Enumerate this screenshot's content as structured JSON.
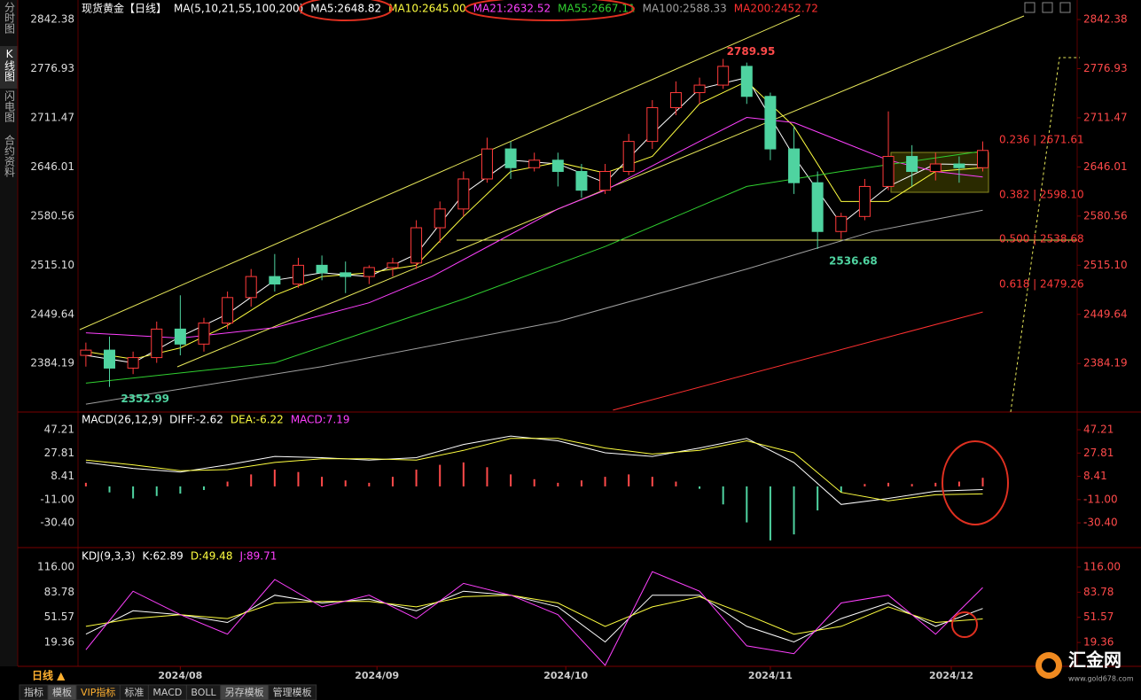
{
  "sidebar_tabs": [
    "分时图",
    "K线图",
    "闪电图",
    "合约资料"
  ],
  "chart_data": [
    {
      "type": "candlestick",
      "title": "现货黄金【日线】",
      "indicator": "MA(5,10,21,55,100,200)",
      "up_color": "#ff3a3a",
      "down_color": "#4fd3a0",
      "x": [
        0,
        3,
        6,
        9,
        12,
        15,
        18,
        21,
        24,
        27,
        30,
        33,
        36,
        39,
        42,
        45,
        48,
        51,
        54,
        57,
        60,
        63,
        66,
        69,
        72,
        75,
        78,
        81,
        84,
        87,
        90,
        93,
        96,
        99,
        102,
        105,
        108,
        111,
        114
      ],
      "open": [
        2395,
        2402,
        2378,
        2392,
        2430,
        2410,
        2438,
        2472,
        2500,
        2490,
        2515,
        2505,
        2500,
        2512,
        2518,
        2565,
        2590,
        2630,
        2670,
        2645,
        2655,
        2640,
        2615,
        2640,
        2680,
        2725,
        2745,
        2755,
        2780,
        2740,
        2670,
        2625,
        2560,
        2580,
        2620,
        2660,
        2640,
        2650,
        2645
      ],
      "high": [
        2412,
        2420,
        2400,
        2440,
        2475,
        2445,
        2480,
        2510,
        2530,
        2525,
        2528,
        2520,
        2515,
        2525,
        2575,
        2600,
        2640,
        2685,
        2680,
        2665,
        2665,
        2650,
        2650,
        2690,
        2735,
        2760,
        2765,
        2789.95,
        2785,
        2745,
        2700,
        2640,
        2585,
        2630,
        2720,
        2675,
        2665,
        2660,
        2680
      ],
      "low": [
        2380,
        2352.99,
        2370,
        2385,
        2395,
        2400,
        2430,
        2460,
        2480,
        2485,
        2495,
        2478,
        2490,
        2500,
        2510,
        2545,
        2580,
        2625,
        2630,
        2640,
        2620,
        2605,
        2610,
        2635,
        2670,
        2715,
        2730,
        2750,
        2730,
        2655,
        2610,
        2536.68,
        2550,
        2575,
        2615,
        2620,
        2628,
        2625,
        2640
      ],
      "close": [
        2402,
        2378,
        2392,
        2430,
        2410,
        2438,
        2472,
        2500,
        2490,
        2515,
        2505,
        2500,
        2512,
        2518,
        2565,
        2590,
        2630,
        2670,
        2645,
        2655,
        2640,
        2615,
        2640,
        2680,
        2725,
        2745,
        2755,
        2780,
        2740,
        2670,
        2625,
        2560,
        2580,
        2620,
        2660,
        2640,
        2650,
        2645,
        2668
      ],
      "series": [
        {
          "name": "MA5:2648.82",
          "color": "#ffffff",
          "x": [
            0,
            6,
            12,
            18,
            24,
            30,
            36,
            42,
            48,
            54,
            60,
            66,
            72,
            78,
            84,
            90,
            96,
            102,
            108,
            114
          ],
          "values": [
            2395,
            2385,
            2420,
            2450,
            2495,
            2505,
            2500,
            2530,
            2610,
            2655,
            2650,
            2625,
            2690,
            2750,
            2765,
            2660,
            2570,
            2620,
            2650,
            2648.82
          ]
        },
        {
          "name": "MA10:2645.00",
          "color": "#ffff40",
          "x": [
            0,
            6,
            12,
            18,
            24,
            30,
            36,
            42,
            48,
            54,
            60,
            66,
            72,
            78,
            84,
            90,
            96,
            102,
            108,
            114
          ],
          "values": [
            2400,
            2390,
            2405,
            2435,
            2475,
            2500,
            2505,
            2515,
            2580,
            2640,
            2652,
            2638,
            2660,
            2730,
            2760,
            2700,
            2600,
            2600,
            2640,
            2645.0
          ]
        },
        {
          "name": "MA21:2632.52",
          "color": "#ff40ff",
          "x": [
            0,
            12,
            24,
            36,
            44,
            52,
            60,
            66,
            78,
            84,
            90,
            96,
            102,
            108,
            114
          ],
          "values": [
            2425,
            2418,
            2432,
            2465,
            2500,
            2545,
            2590,
            2615,
            2680,
            2712,
            2705,
            2680,
            2655,
            2640,
            2632.52
          ]
        },
        {
          "name": "MA55:2667.11",
          "color": "#30d030",
          "x": [
            0,
            24,
            48,
            66,
            84,
            96,
            114
          ],
          "values": [
            2358,
            2385,
            2470,
            2540,
            2620,
            2640,
            2667.11
          ]
        },
        {
          "name": "MA100:2588.33",
          "color": "#a0a0a0",
          "x": [
            0,
            30,
            60,
            84,
            100,
            114
          ],
          "values": [
            2330,
            2380,
            2440,
            2510,
            2560,
            2588.33
          ]
        },
        {
          "name": "MA200:2452.72",
          "color": "#ff3030",
          "x": [
            67,
            114
          ],
          "values": [
            2322,
            2452.72
          ]
        }
      ],
      "xlim": [
        -1,
        126
      ],
      "ylim": [
        2319.5,
        2868.4
      ],
      "yticks": [
        2842.38,
        2776.93,
        2711.47,
        2646.01,
        2580.56,
        {
          "value": 2515.1,
          "label": "2515.10"
        },
        2449.64,
        2384.19
      ],
      "xticks": [
        {
          "value": 12,
          "label": "2024/08"
        },
        {
          "value": 37,
          "label": "2024/09"
        },
        {
          "value": 61,
          "label": "2024/10"
        },
        {
          "value": 87,
          "label": "2024/11"
        },
        {
          "value": 110,
          "label": "2024/12"
        }
      ],
      "annotations": [
        {
          "text": "2789.95",
          "x": 81,
          "y": 2789.95,
          "color": "#ff4a4a"
        },
        {
          "text": "2536.68",
          "x": 94,
          "y": 2536.68,
          "color": "#4fd3a0"
        },
        {
          "text": "2352.99",
          "x": 4,
          "y": 2352.99,
          "color": "#4fd3a0"
        }
      ],
      "fib_labels": [
        "0.236 | 2671.61",
        "0.382 | 2598.10",
        "0.500 | 2538.68",
        "0.618 | 2479.26"
      ]
    },
    {
      "type": "macd",
      "title": "MACD(26,12,9)",
      "value_name": "MACD:7.19",
      "label_color": "#ff40ff",
      "up_color": "#ff4a4a",
      "down_color": "#4fd3a0",
      "x": [
        0,
        3,
        6,
        9,
        12,
        15,
        18,
        21,
        24,
        27,
        30,
        33,
        36,
        39,
        42,
        45,
        48,
        51,
        54,
        57,
        60,
        63,
        66,
        69,
        72,
        75,
        78,
        81,
        84,
        87,
        90,
        93,
        96,
        99,
        102,
        105,
        108,
        111,
        114
      ],
      "values": [
        3,
        -5,
        -10,
        -8,
        -6,
        -3,
        4,
        10,
        14,
        12,
        8,
        5,
        3,
        8,
        14,
        18,
        20,
        16,
        10,
        6,
        3,
        5,
        8,
        10,
        8,
        4,
        -2,
        -15,
        -30,
        -45,
        -40,
        -20,
        -5,
        2,
        3,
        2,
        3,
        4,
        7.19
      ],
      "series": [
        {
          "name": "DIFF:-2.62",
          "color": "#ffffff",
          "x": [
            0,
            6,
            12,
            18,
            24,
            30,
            36,
            42,
            48,
            54,
            60,
            66,
            72,
            78,
            84,
            90,
            96,
            102,
            108,
            114
          ],
          "values": [
            20,
            15,
            12,
            18,
            25,
            24,
            22,
            24,
            35,
            42,
            38,
            28,
            25,
            32,
            40,
            20,
            -15,
            -10,
            -4,
            -2.62
          ]
        },
        {
          "name": "DEA:-6.22",
          "color": "#ffff40",
          "x": [
            0,
            6,
            12,
            18,
            24,
            30,
            36,
            42,
            48,
            54,
            60,
            66,
            72,
            78,
            84,
            90,
            96,
            102,
            108,
            114
          ],
          "values": [
            22,
            18,
            13,
            14,
            20,
            23,
            23,
            22,
            30,
            40,
            40,
            32,
            27,
            30,
            38,
            28,
            -5,
            -12,
            -7,
            -6.22
          ]
        }
      ],
      "xlim": [
        -1,
        126
      ],
      "ylim": [
        -51,
        62
      ],
      "yticks": [
        47.21,
        27.81,
        8.41,
        {
          "value": -11,
          "label": "-11.00"
        },
        {
          "value": -30.4,
          "label": "-30.40"
        }
      ]
    },
    {
      "type": "line",
      "title": "KDJ(9,3,3)",
      "series": [
        {
          "name": "K:62.89",
          "color": "#ffffff",
          "x": [
            0,
            6,
            12,
            18,
            24,
            30,
            36,
            42,
            48,
            54,
            60,
            66,
            72,
            78,
            84,
            90,
            96,
            102,
            108,
            114
          ],
          "values": [
            30,
            60,
            55,
            45,
            80,
            70,
            75,
            60,
            85,
            80,
            65,
            20,
            80,
            80,
            40,
            20,
            50,
            70,
            40,
            62.89
          ]
        },
        {
          "name": "D:49.48",
          "color": "#ffff40",
          "x": [
            0,
            6,
            12,
            18,
            24,
            30,
            36,
            42,
            48,
            54,
            60,
            66,
            72,
            78,
            84,
            90,
            96,
            102,
            108,
            114
          ],
          "values": [
            40,
            50,
            55,
            50,
            70,
            72,
            72,
            65,
            78,
            80,
            70,
            40,
            65,
            78,
            55,
            30,
            40,
            65,
            45,
            49.48
          ]
        },
        {
          "name": "J:89.71",
          "color": "#ff40ff",
          "x": [
            0,
            6,
            12,
            18,
            24,
            30,
            36,
            42,
            48,
            54,
            60,
            66,
            72,
            78,
            84,
            90,
            96,
            102,
            108,
            114
          ],
          "values": [
            10,
            85,
            55,
            30,
            100,
            65,
            80,
            50,
            95,
            80,
            55,
            -10,
            110,
            85,
            15,
            5,
            70,
            80,
            30,
            89.71
          ]
        }
      ],
      "xlim": [
        -1,
        126
      ],
      "ylim": [
        -11.2,
        140.9
      ],
      "yticks": [
        {
          "value": 116,
          "label": "116.00"
        },
        83.78,
        51.57,
        19.36
      ]
    }
  ],
  "period_label": "日线 ▲",
  "bottom_tabs": [
    "指标",
    "模板",
    "VIP指标",
    "标准",
    "MACD",
    "BOLL",
    "另存模板",
    "管理模板"
  ],
  "logo": {
    "name": "汇金网",
    "url": "www.gold678.com"
  }
}
